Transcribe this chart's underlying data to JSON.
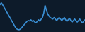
{
  "background_color": "#0d1b2a",
  "line_color": "#3a8fd4",
  "line_width": 1.2,
  "y_values": [
    30,
    35,
    30,
    24,
    18,
    12,
    6,
    0,
    -6,
    -12,
    -18,
    -24,
    -30,
    -34,
    -36,
    -36,
    -34,
    -30,
    -26,
    -22,
    -18,
    -14,
    -12,
    -13,
    -10,
    -14,
    -12,
    -16,
    -18,
    -14,
    -10,
    -14,
    -8,
    -4,
    8,
    28,
    16,
    6,
    0,
    -4,
    -6,
    -8,
    -4,
    -8,
    -12,
    -8,
    -4,
    -8,
    -12,
    -8,
    -4,
    -10,
    -14,
    -10,
    -6,
    -12,
    -16,
    -12,
    -8,
    -12,
    -16,
    -12,
    -8,
    -14,
    -18,
    -14,
    -10
  ]
}
